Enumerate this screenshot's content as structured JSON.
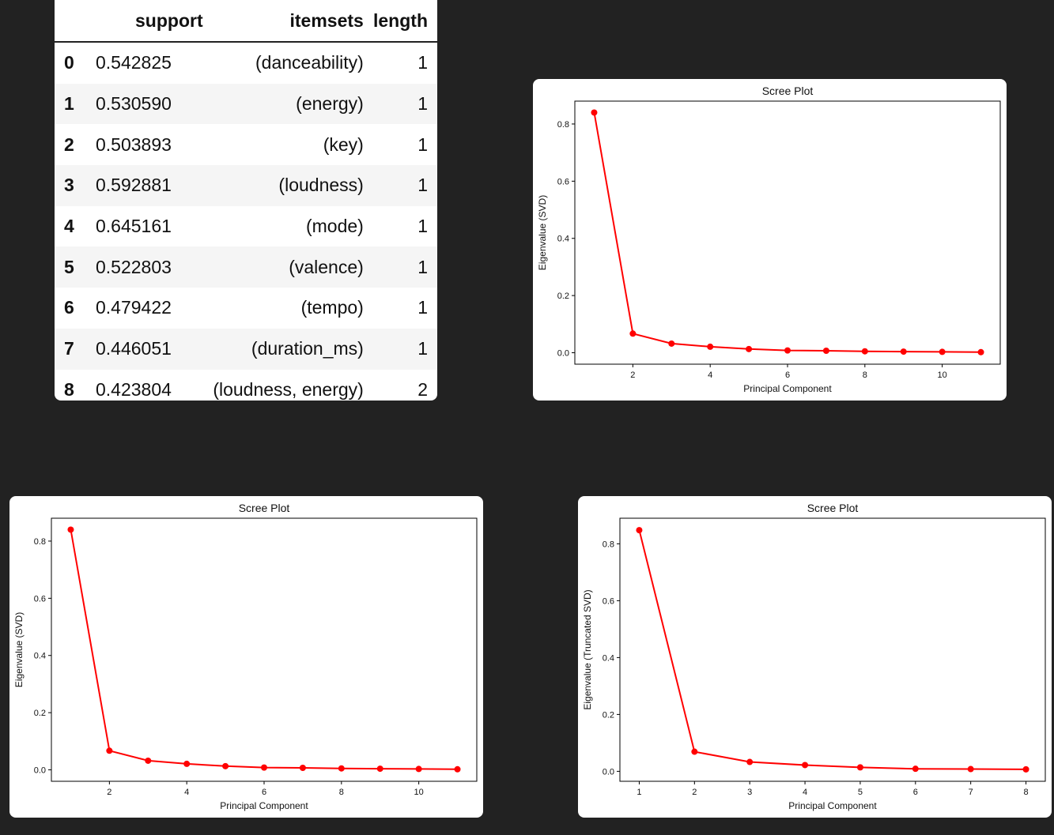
{
  "table": {
    "headers": [
      "support",
      "itemsets",
      "length"
    ],
    "rows": [
      {
        "index": "0",
        "support": "0.542825",
        "itemsets": "(danceability)",
        "length": "1"
      },
      {
        "index": "1",
        "support": "0.530590",
        "itemsets": "(energy)",
        "length": "1"
      },
      {
        "index": "2",
        "support": "0.503893",
        "itemsets": "(key)",
        "length": "1"
      },
      {
        "index": "3",
        "support": "0.592881",
        "itemsets": "(loudness)",
        "length": "1"
      },
      {
        "index": "4",
        "support": "0.645161",
        "itemsets": "(mode)",
        "length": "1"
      },
      {
        "index": "5",
        "support": "0.522803",
        "itemsets": "(valence)",
        "length": "1"
      },
      {
        "index": "6",
        "support": "0.479422",
        "itemsets": "(tempo)",
        "length": "1"
      },
      {
        "index": "7",
        "support": "0.446051",
        "itemsets": "(duration_ms)",
        "length": "1"
      },
      {
        "index": "8",
        "support": "0.423804",
        "itemsets": "(loudness, energy)",
        "length": "2"
      }
    ]
  },
  "chart_data": [
    {
      "type": "line",
      "title": "Scree Plot",
      "xlabel": "Principal Component",
      "ylabel": "Eigenvalue (SVD)",
      "x": [
        1,
        2,
        3,
        4,
        5,
        6,
        7,
        8,
        9,
        10,
        11
      ],
      "series": [
        {
          "values": [
            0.84,
            0.067,
            0.032,
            0.021,
            0.013,
            0.008,
            0.007,
            0.005,
            0.004,
            0.003,
            0.002
          ]
        }
      ],
      "xticks": [
        2,
        4,
        6,
        8,
        10
      ],
      "yticks": [
        0.0,
        0.2,
        0.4,
        0.6,
        0.8
      ],
      "xlim": [
        0.5,
        11.5
      ],
      "ylim": [
        -0.04,
        0.88
      ],
      "color": "#ff0000",
      "grid": false
    },
    {
      "type": "line",
      "title": "Scree Plot",
      "xlabel": "Principal Component",
      "ylabel": "Eigenvalue (SVD)",
      "x": [
        1,
        2,
        3,
        4,
        5,
        6,
        7,
        8,
        9,
        10,
        11
      ],
      "series": [
        {
          "values": [
            0.84,
            0.067,
            0.032,
            0.021,
            0.013,
            0.008,
            0.007,
            0.005,
            0.004,
            0.003,
            0.002
          ]
        }
      ],
      "xticks": [
        2,
        4,
        6,
        8,
        10
      ],
      "yticks": [
        0.0,
        0.2,
        0.4,
        0.6,
        0.8
      ],
      "xlim": [
        0.5,
        11.5
      ],
      "ylim": [
        -0.04,
        0.88
      ],
      "color": "#ff0000",
      "grid": false
    },
    {
      "type": "line",
      "title": "Scree Plot",
      "xlabel": "Principal Component",
      "ylabel": "Eigenvalue (Truncated SVD)",
      "x": [
        1,
        2,
        3,
        4,
        5,
        6,
        7,
        8
      ],
      "series": [
        {
          "values": [
            0.848,
            0.069,
            0.033,
            0.022,
            0.014,
            0.009,
            0.008,
            0.007
          ]
        }
      ],
      "xticks": [
        1,
        2,
        3,
        4,
        5,
        6,
        7,
        8
      ],
      "yticks": [
        0.0,
        0.2,
        0.4,
        0.6,
        0.8
      ],
      "xlim": [
        0.65,
        8.35
      ],
      "ylim": [
        -0.035,
        0.89
      ],
      "color": "#ff0000",
      "grid": false
    }
  ]
}
